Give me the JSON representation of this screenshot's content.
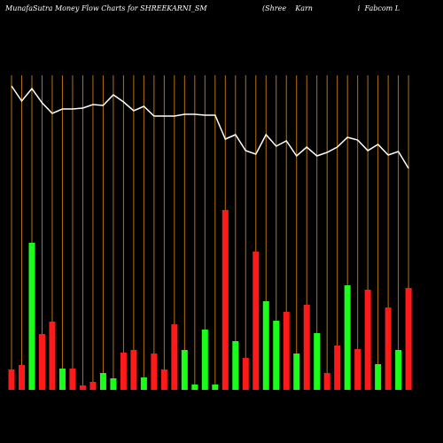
{
  "chart_data": {
    "type": "bar",
    "title": "MunafaSutra  Money Flow  Charts for SHREEKARNI_SM",
    "subtitle": "(Shree    Karn                    i  Fabcom L",
    "values": [
      23,
      28,
      166,
      63,
      77,
      24,
      24,
      5,
      9,
      19,
      13,
      42,
      45,
      14,
      41,
      23,
      74,
      45,
      6,
      68,
      6,
      203,
      55,
      36,
      156,
      100,
      78,
      88,
      41,
      96,
      64,
      19,
      50,
      118,
      46,
      113,
      29,
      93,
      45,
      115
    ],
    "colors": [
      "#ff1a1a",
      "#ff1a1a",
      "#1aff1a",
      "#ff1a1a",
      "#ff1a1a",
      "#1aff1a",
      "#ff1a1a",
      "#ff1a1a",
      "#ff1a1a",
      "#1aff1a",
      "#1aff1a",
      "#ff1a1a",
      "#ff1a1a",
      "#1aff1a",
      "#ff1a1a",
      "#ff1a1a",
      "#ff1a1a",
      "#1aff1a",
      "#1aff1a",
      "#1aff1a",
      "#1aff1a",
      "#ff1a1a",
      "#1aff1a",
      "#ff1a1a",
      "#ff1a1a",
      "#1aff1a",
      "#1aff1a",
      "#ff1a1a",
      "#1aff1a",
      "#ff1a1a",
      "#1aff1a",
      "#ff1a1a",
      "#ff1a1a",
      "#1aff1a",
      "#ff1a1a",
      "#ff1a1a",
      "#1aff1a",
      "#ff1a1a",
      "#1aff1a",
      "#ff1a1a"
    ],
    "line_values": [
      343,
      326,
      340,
      324,
      312,
      317,
      317,
      318,
      322,
      321,
      333,
      325,
      315,
      320,
      309,
      309,
      309,
      311,
      311,
      310,
      310,
      283,
      288,
      270,
      266,
      288,
      275,
      281,
      264,
      274,
      264,
      268,
      274,
      285,
      282,
      270,
      277,
      265,
      269,
      250
    ],
    "line_color": "#ffffff",
    "grid_color": "#b8730b",
    "ylim": [
      0,
      440
    ]
  }
}
